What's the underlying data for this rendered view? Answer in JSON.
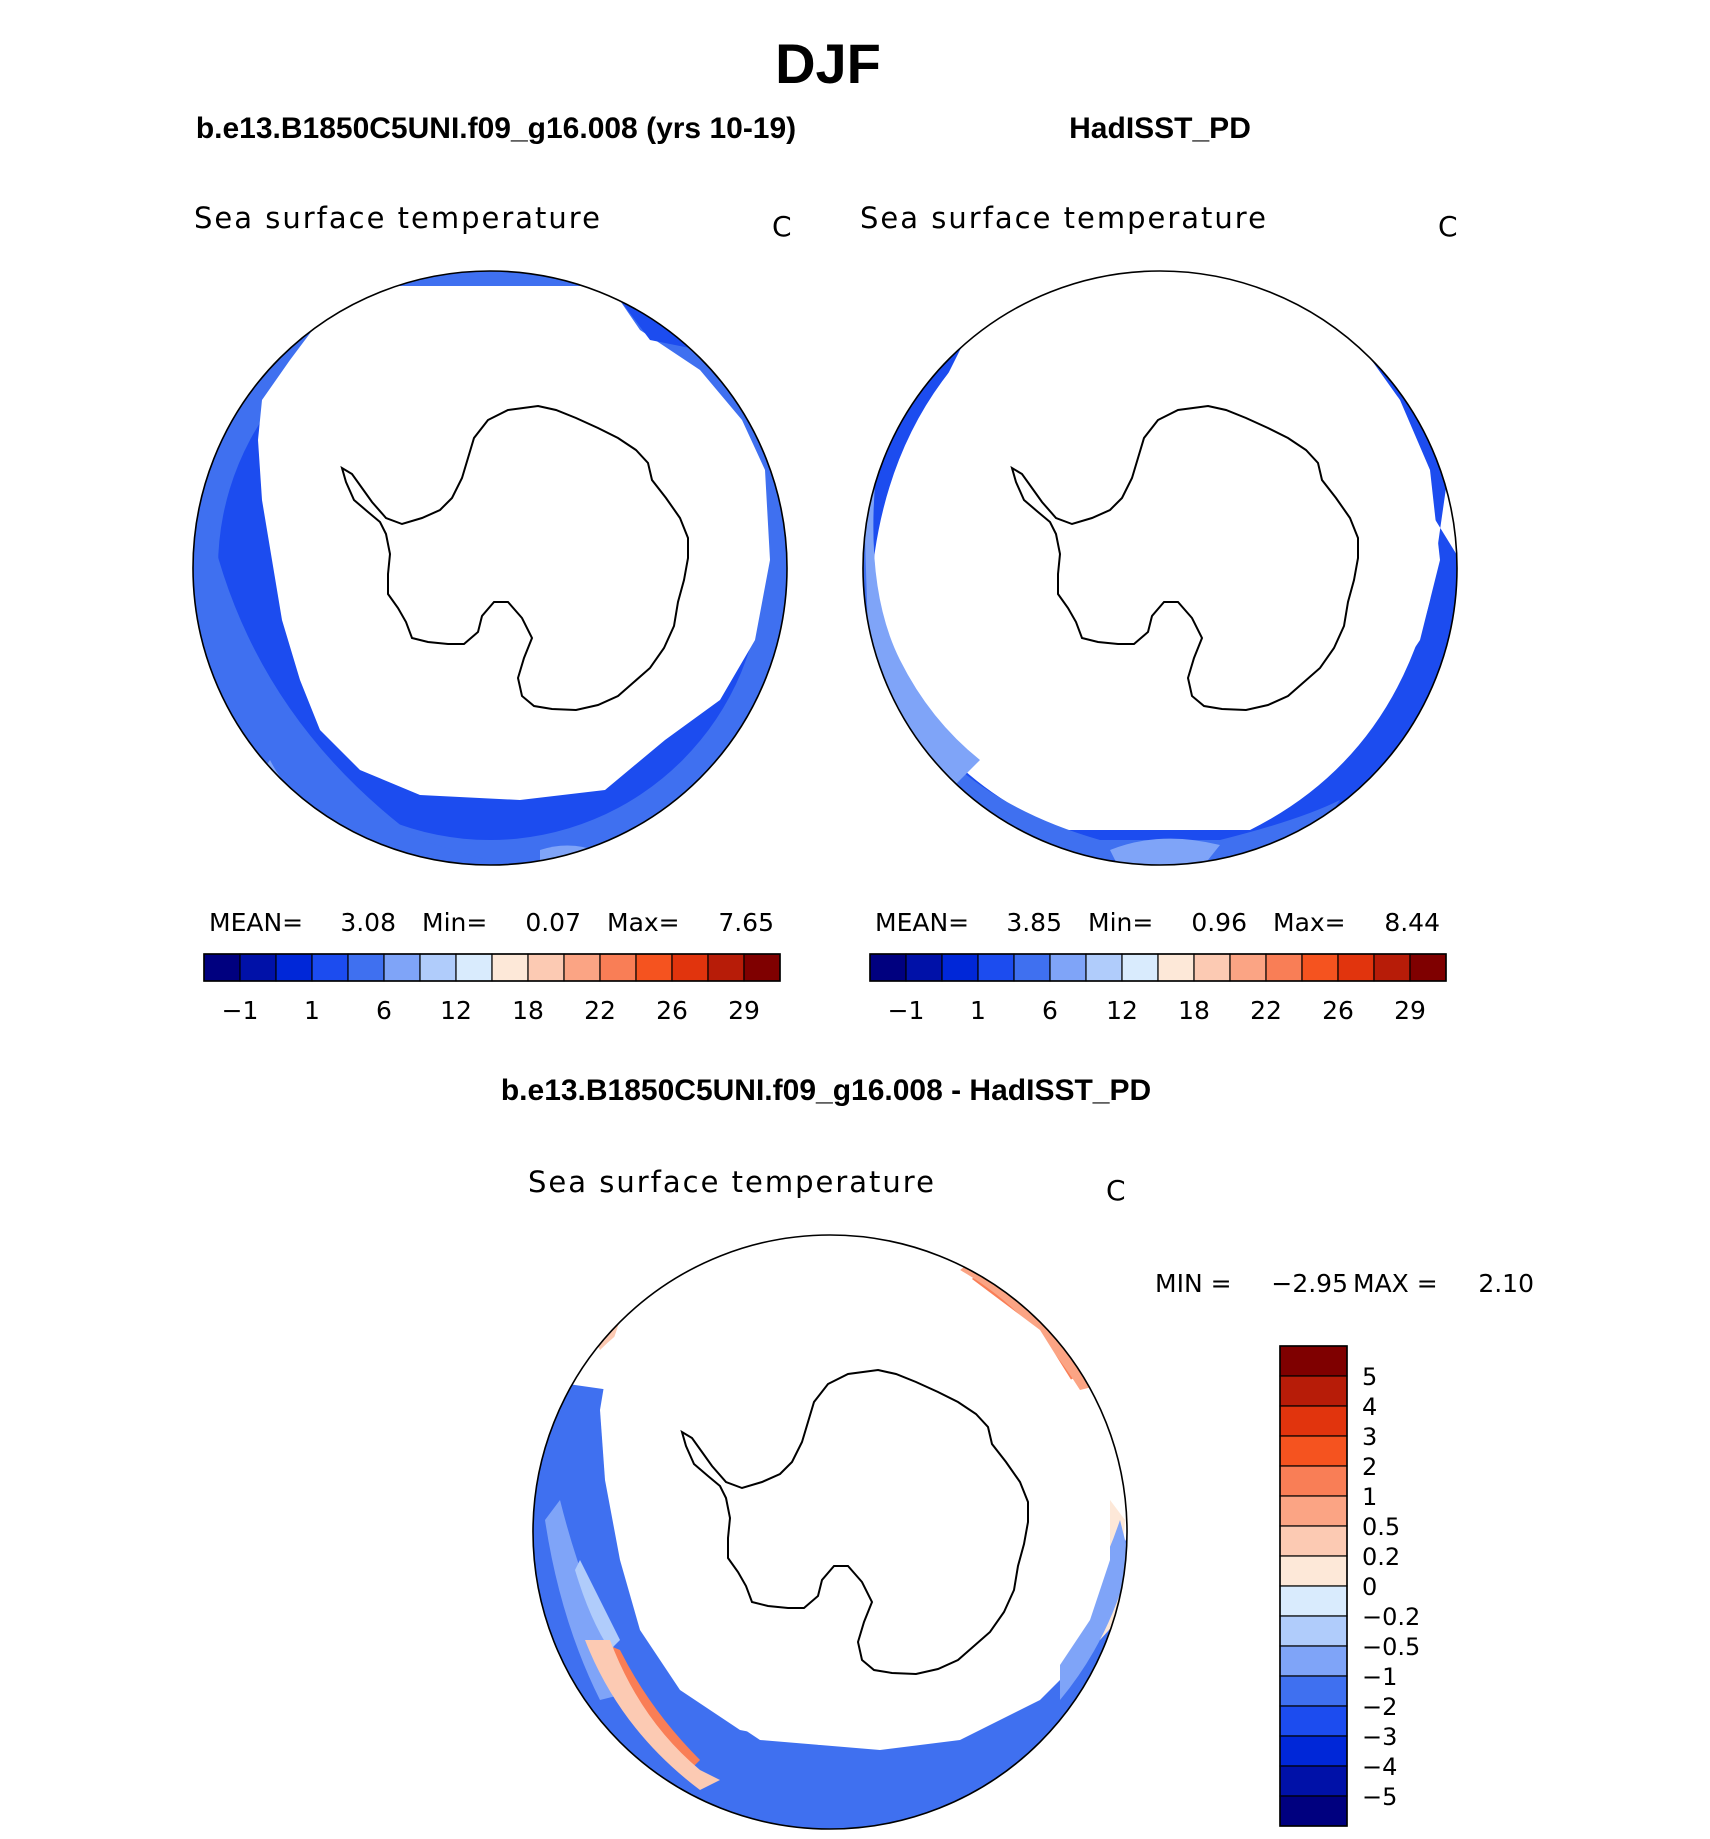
{
  "page_title": "DJF",
  "colors": {
    "full_scale": [
      "#00007f",
      "#0011a8",
      "#0027d8",
      "#1c4cef",
      "#3f70f0",
      "#7fa4f8",
      "#b0ccfb",
      "#d9ebfd",
      "#fde8d8",
      "#fccab3",
      "#fba484",
      "#f97e56",
      "#f5531f",
      "#e1340d",
      "#b71c08",
      "#7f0000"
    ],
    "diff_scale": [
      "#00007f",
      "#0011a8",
      "#0027d8",
      "#1c4cef",
      "#3f70f0",
      "#7fa4f8",
      "#b0ccfb",
      "#d9ebfd",
      "#fde8d8",
      "#fccab3",
      "#fba484",
      "#f97e56",
      "#f5531f",
      "#e1340d",
      "#b71c08",
      "#7f0000"
    ],
    "ocean": "#ffffff",
    "coast": "#000000"
  },
  "chart_data": [
    {
      "type": "heatmap",
      "projection": "south-polar-stereographic",
      "title": "b.e13.B1850C5UNI.f09_g16.008 (yrs 10-19)",
      "variable": "Sea surface temperature",
      "units": "C",
      "stats": {
        "mean_label": "MEAN=",
        "mean": "3.08",
        "min_label": "Min=",
        "min": "0.07",
        "max_label": "Max=",
        "max": "7.65"
      },
      "colorbar": {
        "orientation": "horizontal",
        "ticks": [
          "−1",
          "1",
          "6",
          "12",
          "18",
          "22",
          "26",
          "29"
        ]
      },
      "field": {
        "bands": [
          {
            "level": "1",
            "from_center_frac": 0.9,
            "to_center_frac": 1.0,
            "color_index": 2
          },
          {
            "level": "6",
            "from_center_frac": 0.77,
            "to_center_frac": 0.9,
            "color_index": 3
          }
        ],
        "extra": [
          {
            "level": "12",
            "note": "light blue patches near outer rim lower part",
            "color_index": 5
          }
        ]
      }
    },
    {
      "type": "heatmap",
      "projection": "south-polar-stereographic",
      "title": "HadISST_PD",
      "variable": "Sea surface temperature",
      "units": "C",
      "stats": {
        "mean_label": "MEAN=",
        "mean": "3.85",
        "min_label": "Min=",
        "min": "0.96",
        "max_label": "Max=",
        "max": "8.44"
      },
      "colorbar": {
        "orientation": "horizontal",
        "ticks": [
          "−1",
          "1",
          "6",
          "12",
          "18",
          "22",
          "26",
          "29"
        ]
      }
    },
    {
      "type": "heatmap",
      "projection": "south-polar-stereographic",
      "title": "b.e13.B1850C5UNI.f09_g16.008 - HadISST_PD",
      "variable": "Sea surface temperature",
      "units": "C",
      "stats": {
        "min_label": "MIN =",
        "min": "−2.95",
        "max_label": "MAX =",
        "max": "2.10"
      },
      "colorbar": {
        "orientation": "vertical",
        "ticks": [
          "5",
          "4",
          "3",
          "2",
          "1",
          "0.5",
          "0.2",
          "0",
          "−0.2",
          "−0.5",
          "−1",
          "−2",
          "−3",
          "−4",
          "−5"
        ]
      }
    }
  ]
}
